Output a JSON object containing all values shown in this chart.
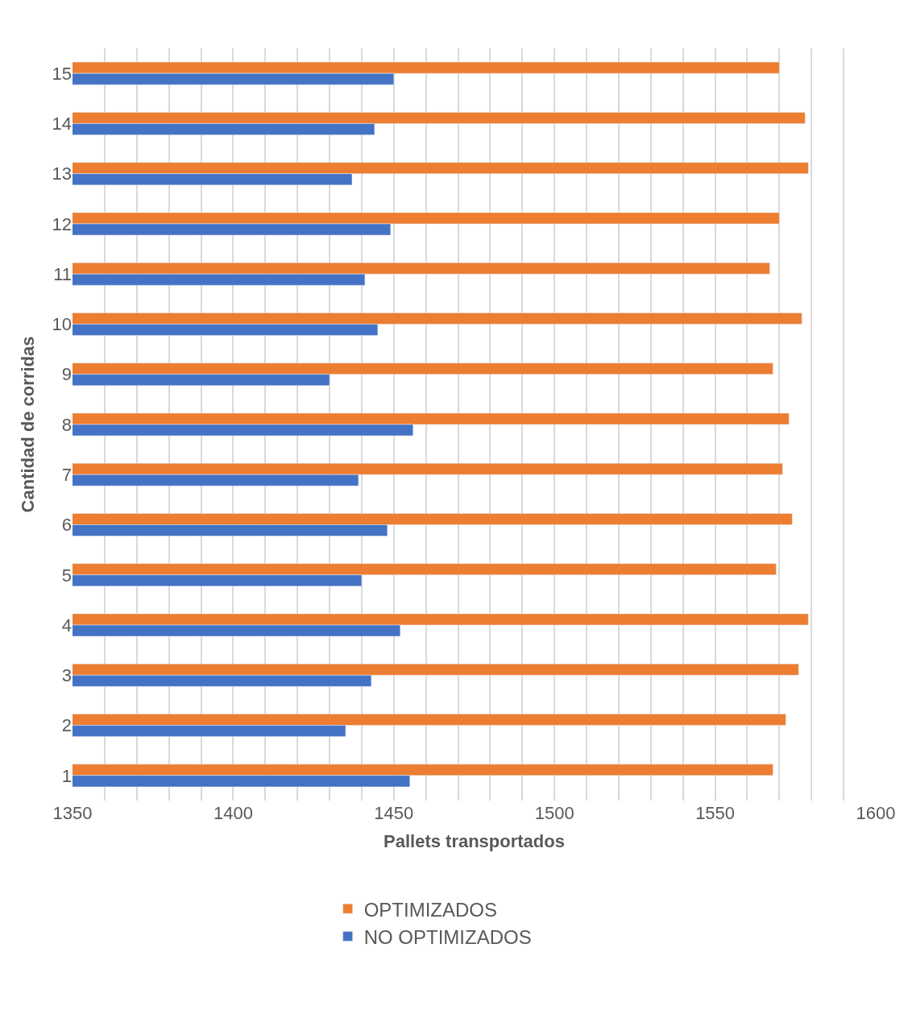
{
  "chart_data": {
    "type": "bar",
    "orientation": "horizontal",
    "xlabel": "Pallets transportados",
    "ylabel": "Cantidad de corridas",
    "categories": [
      "15",
      "14",
      "13",
      "12",
      "11",
      "10",
      "9",
      "8",
      "7",
      "6",
      "5",
      "4",
      "3",
      "2",
      "1"
    ],
    "series": [
      {
        "name": "OPTIMIZADOS",
        "color": "#ed7d31",
        "values": [
          1570,
          1578,
          1579,
          1570,
          1567,
          1577,
          1568,
          1573,
          1571,
          1574,
          1569,
          1579,
          1576,
          1572,
          1568
        ]
      },
      {
        "name": "NO OPTIMIZADOS",
        "color": "#4472c4",
        "values": [
          1450,
          1444,
          1437,
          1449,
          1441,
          1445,
          1430,
          1456,
          1439,
          1448,
          1440,
          1452,
          1443,
          1435,
          1455
        ]
      }
    ],
    "xlim": [
      1350,
      1600
    ],
    "xticks": [
      1350,
      {
        "value": 1360,
        "label": null
      },
      {
        "value": 1370,
        "label": null
      },
      {
        "value": 1380,
        "label": null
      },
      {
        "value": 1390,
        "label": null
      },
      1400,
      {
        "value": 1410,
        "label": null
      },
      {
        "value": 1420,
        "label": null
      },
      {
        "value": 1430,
        "label": null
      },
      {
        "value": 1440,
        "label": null
      },
      1450,
      {
        "value": 1460,
        "label": null
      },
      {
        "value": 1470,
        "label": null
      },
      {
        "value": 1480,
        "label": null
      },
      {
        "value": 1490,
        "label": null
      },
      1500,
      {
        "value": 1510,
        "label": null
      },
      {
        "value": 1520,
        "label": null
      },
      {
        "value": 1530,
        "label": null
      },
      {
        "value": 1540,
        "label": null
      },
      1550,
      {
        "value": 1560,
        "label": null
      },
      {
        "value": 1570,
        "label": null
      },
      {
        "value": 1580,
        "label": null
      },
      {
        "value": 1590,
        "label": null
      },
      1600
    ],
    "grid": "x",
    "legend": "bottom"
  }
}
